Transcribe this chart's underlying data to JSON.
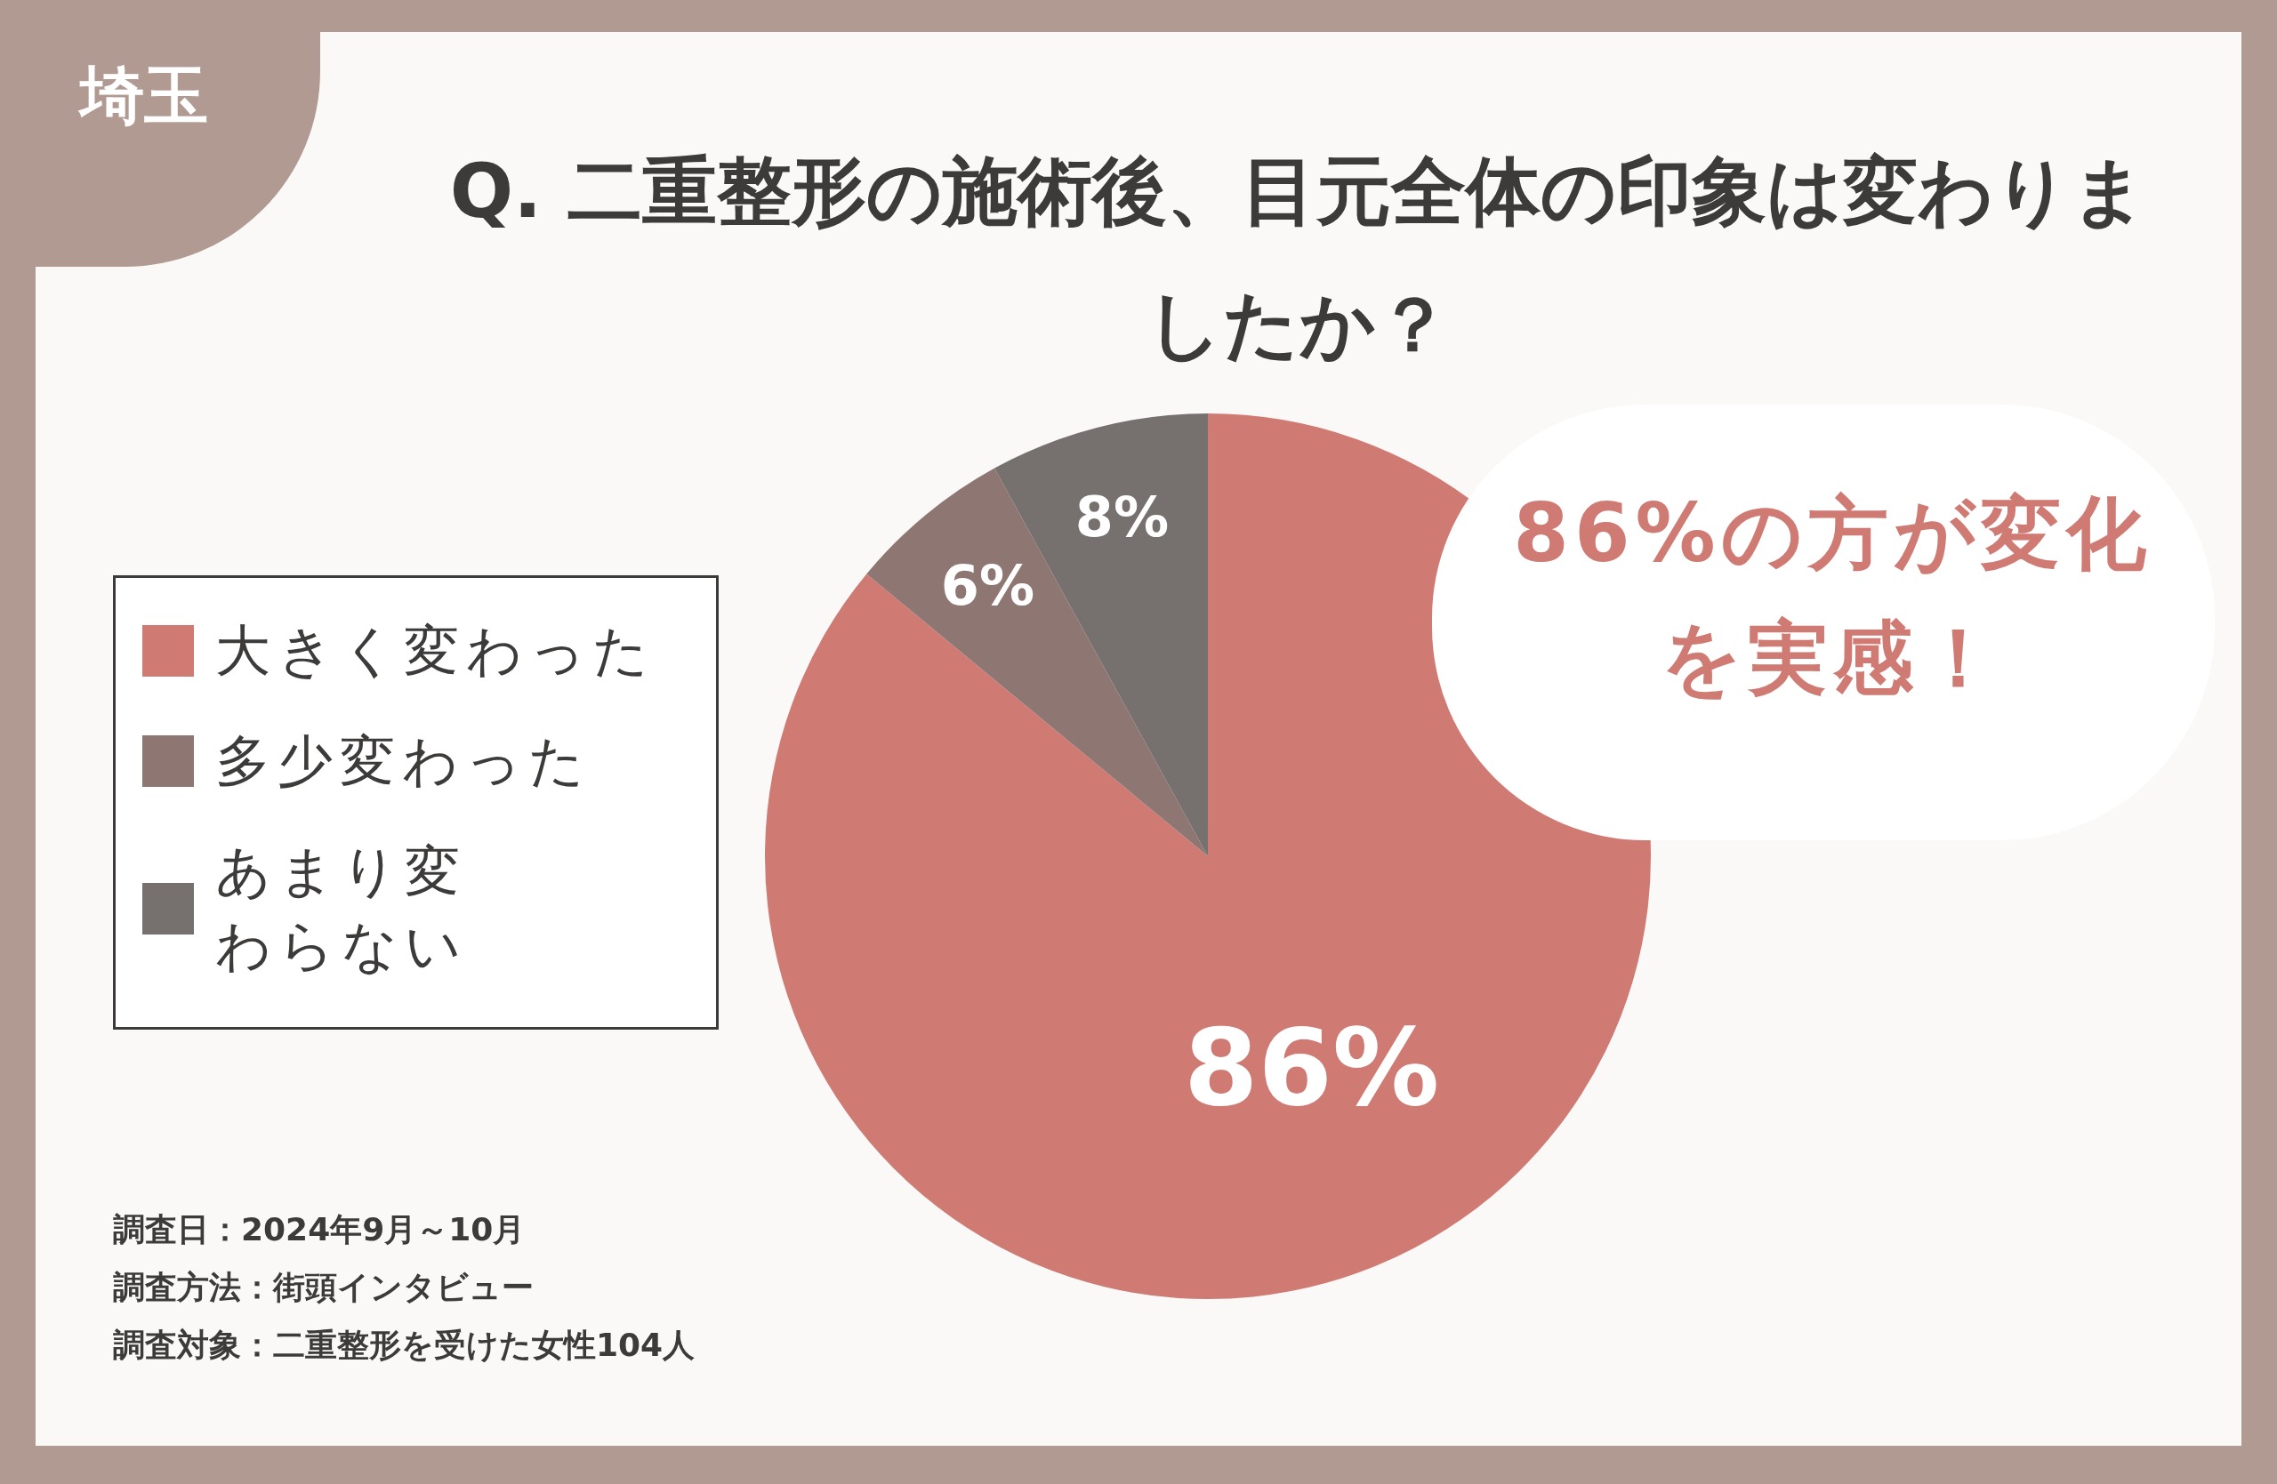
{
  "chart_data": {
    "type": "pie",
    "title": "Q. 二重整形の施術後、目元全体の印象は変わりましたか？",
    "categories": [
      "大きく変わった",
      "多少変わった",
      "あまり変わらない"
    ],
    "values": [
      86,
      6,
      8
    ],
    "colors": [
      "#d07a74",
      "#8e7673",
      "#76706f"
    ],
    "value_labels": [
      "86%",
      "6%",
      "8%"
    ],
    "legend": "left",
    "annotations": [
      "埼玉",
      "86%の方が変化を実感！",
      "調査日：2024年9月～10月",
      "調査方法：街頭インタビュー",
      "調査対象：二重整形を受けた女性104人"
    ]
  }
}
